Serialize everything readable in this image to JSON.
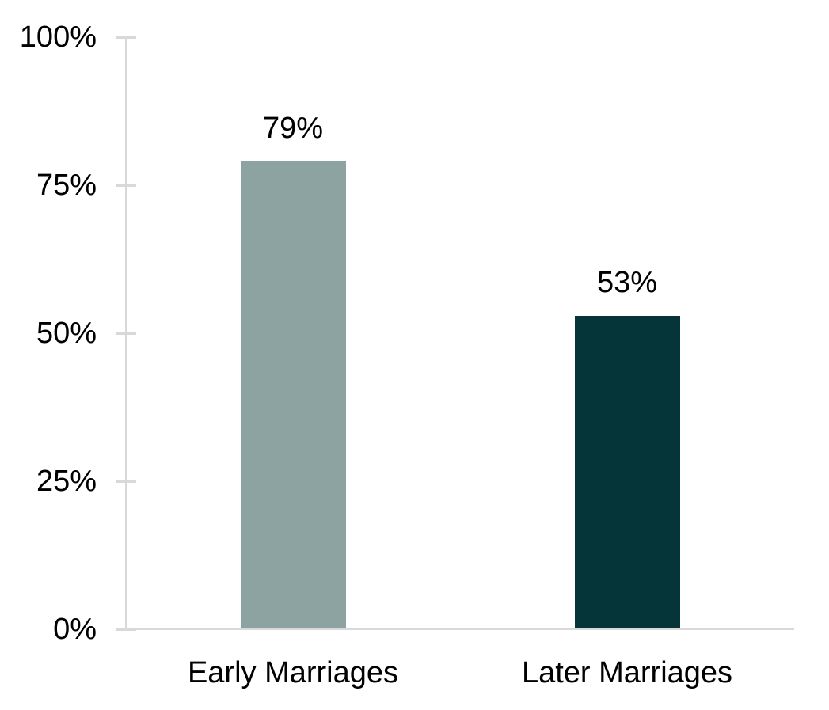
{
  "chart_data": {
    "type": "bar",
    "title": "",
    "xlabel": "",
    "ylabel": "",
    "categories": [
      "Early Marriages",
      "Later Marriages"
    ],
    "values": [
      79,
      53
    ],
    "value_labels": [
      "79%",
      "53%"
    ],
    "y_tick_values": [
      0,
      25,
      50,
      75,
      100
    ],
    "y_tick_labels": [
      "0%",
      "25%",
      "50%",
      "75%",
      "100%"
    ],
    "ylim": [
      0,
      100
    ],
    "grid": false,
    "legend": "none",
    "colors": {
      "bars": [
        "#8CA3A2",
        "#053539"
      ],
      "axis": "#D9D9D9",
      "text": "#000000",
      "background": "#FFFFFF"
    }
  }
}
